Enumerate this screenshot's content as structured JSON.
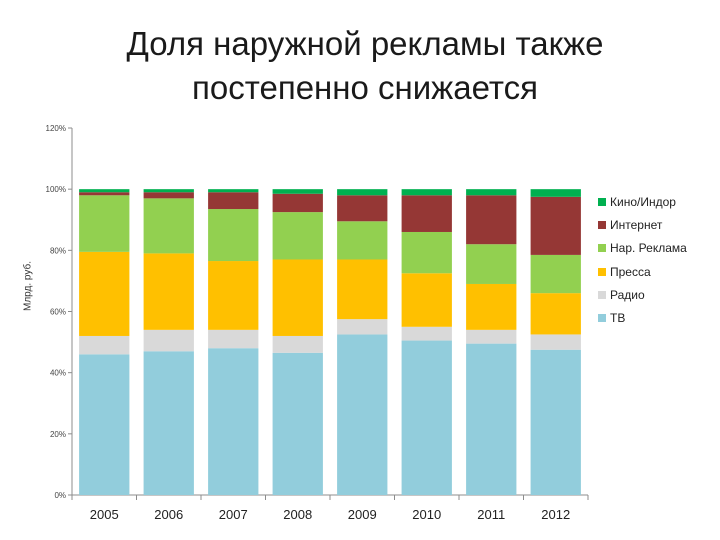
{
  "title": "Доля наружной рекламы также\nпостепенно снижается",
  "chart_data": {
    "type": "bar",
    "stacked": true,
    "categories": [
      "2005",
      "2006",
      "2007",
      "2008",
      "2009",
      "2010",
      "2011",
      "2012"
    ],
    "ylabel": "Млрд. руб.",
    "ylim": [
      0,
      120
    ],
    "yticks": [
      "0%",
      "20%",
      "40%",
      "60%",
      "80%",
      "100%",
      "120%"
    ],
    "ytick_values": [
      0,
      20,
      40,
      60,
      80,
      100,
      120
    ],
    "grid": false,
    "legend_position": "right",
    "series": [
      {
        "name": "ТВ",
        "color": "#92CDDC",
        "values": [
          46,
          47,
          48,
          46.5,
          52.5,
          50.5,
          49.5,
          47.5
        ]
      },
      {
        "name": "Радио",
        "color": "#D9D9D9",
        "values": [
          6,
          7,
          6,
          5.5,
          5,
          4.5,
          4.5,
          5
        ]
      },
      {
        "name": "Пресса",
        "color": "#FFC000",
        "values": [
          27.5,
          25,
          22.5,
          25,
          19.5,
          17.5,
          15,
          13.5
        ]
      },
      {
        "name": "Нар. Реклама",
        "color": "#92D050",
        "values": [
          18.5,
          18,
          17,
          15.5,
          12.5,
          13.5,
          13,
          12.5
        ]
      },
      {
        "name": "Интернет",
        "color": "#953735",
        "values": [
          1,
          2,
          5.5,
          6,
          8.5,
          12,
          16,
          19
        ]
      },
      {
        "name": "Кино/Индор",
        "color": "#00B050",
        "values": [
          1,
          1,
          1,
          1.5,
          2,
          2,
          2,
          2.5
        ]
      }
    ],
    "legend_order": [
      "Кино/Индор",
      "Интернет",
      "Нар. Реклама",
      "Пресса",
      "Радио",
      "ТВ"
    ]
  }
}
